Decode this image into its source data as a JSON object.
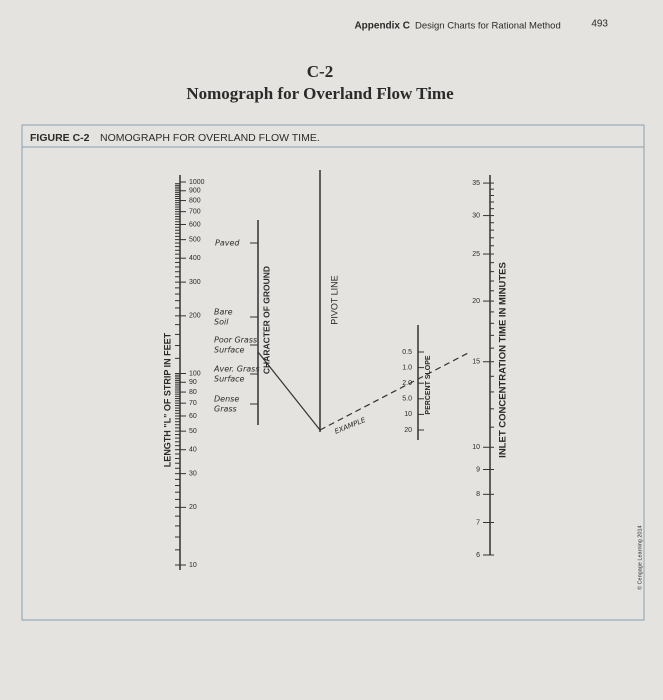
{
  "header": {
    "appendix": "Appendix C",
    "section": "Design Charts for Rational Method",
    "page": "493"
  },
  "title": {
    "number": "C-2",
    "text": "Nomograph for Overland Flow Time"
  },
  "figure": {
    "label": "FIGURE C-2",
    "caption": "NOMOGRAPH FOR OVERLAND FLOW TIME."
  },
  "nomograph": {
    "length_scale": {
      "label": "LENGTH \"L\" OF STRIP IN FEET",
      "ticks": [
        "1000",
        "900",
        "800",
        "700",
        "600",
        "500",
        "400",
        "300",
        "200",
        "100",
        "90",
        "80",
        "70",
        "60",
        "50",
        "40",
        "30",
        "20",
        "10"
      ]
    },
    "ground_scale": {
      "label": "CHARACTER OF GROUND",
      "items": [
        [
          "Paved"
        ],
        [
          "Bare",
          "Soil"
        ],
        [
          "Poor Grass",
          "Surface"
        ],
        [
          "Aver. Grass",
          "Surface"
        ],
        [
          "Dense",
          "Grass"
        ]
      ]
    },
    "pivot_label": "PIVOT LINE",
    "example_label": "EXAMPLE",
    "slope_scale": {
      "label": "PERCENT SLOPE",
      "ticks": [
        "0.5",
        "1.0",
        "2.0",
        "5.0",
        "10",
        "20"
      ]
    },
    "time_scale": {
      "label": "INLET CONCENTRATION TIME IN MINUTES",
      "ticks": [
        "35",
        "30",
        "25",
        "20",
        "15",
        "10",
        "9",
        "8",
        "7",
        "6"
      ]
    }
  },
  "copyright": "© Cengage Learning 2014"
}
